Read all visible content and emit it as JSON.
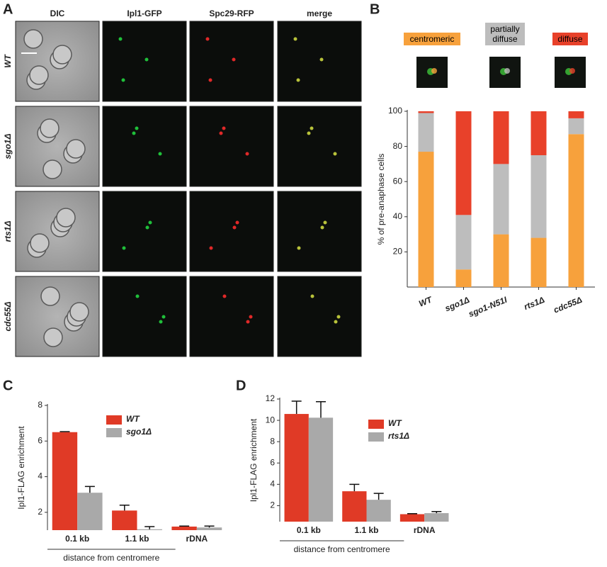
{
  "panel_labels": [
    "A",
    "B",
    "C",
    "D"
  ],
  "microscopy": {
    "columns": [
      "DIC",
      "Ipl1-GFP",
      "Spc29-RFP",
      "merge"
    ],
    "rows": [
      "WT",
      "sgo1Δ",
      "rts1Δ",
      "cdc55Δ"
    ]
  },
  "chart_data": [
    {
      "type": "stacked-bar",
      "ylabel": "% of pre-anaphase cells",
      "categories": [
        "WT",
        "sgo1Δ",
        "sgo1-N51I",
        "rts1Δ",
        "cdc55Δ"
      ],
      "series": [
        {
          "name": "centromeric",
          "color": "#f7a13c",
          "values": [
            77,
            10,
            30,
            28,
            87
          ]
        },
        {
          "name": "partially diffuse",
          "color": "#bdbdbd",
          "values": [
            22,
            31,
            40,
            47,
            9
          ]
        },
        {
          "name": "diffuse",
          "color": "#e8412a",
          "values": [
            1,
            59,
            30,
            25,
            4
          ]
        }
      ],
      "ylim": [
        0,
        100
      ],
      "yticks": [
        20,
        40,
        60,
        80,
        100
      ]
    },
    {
      "type": "bar",
      "ylabel": "Ipl1-FLAG enrichment",
      "xlabel": "distance from centromere",
      "categories": [
        "0.1 kb",
        "1.1 kb",
        "rDNA"
      ],
      "series": [
        {
          "name": "WT",
          "color": "#e03a26",
          "values": [
            6.5,
            2.1,
            1.2
          ],
          "errors": [
            0.03,
            0.3,
            0.03
          ]
        },
        {
          "name": "sgo1Δ",
          "color": "#a9a9a9",
          "values": [
            3.1,
            1.05,
            1.15
          ],
          "errors": [
            0.35,
            0.15,
            0.08
          ]
        }
      ],
      "ylim": [
        1,
        8
      ],
      "yticks": [
        2,
        4,
        6,
        8
      ]
    },
    {
      "type": "bar",
      "ylabel": "Ipl1-FLAG enrichment",
      "xlabel": "distance from centromere",
      "categories": [
        "0.1 kb",
        "1.1 kb",
        "rDNA"
      ],
      "series": [
        {
          "name": "WT",
          "color": "#e03a26",
          "values": [
            10.6,
            3.35,
            1.2
          ],
          "errors": [
            1.2,
            0.65,
            0.05
          ]
        },
        {
          "name": "rts1Δ",
          "color": "#a9a9a9",
          "values": [
            10.25,
            2.55,
            1.3
          ],
          "errors": [
            1.5,
            0.6,
            0.15
          ]
        }
      ],
      "ylim": [
        0.5,
        12
      ],
      "yticks": [
        2,
        4,
        6,
        8,
        10,
        12
      ]
    }
  ]
}
